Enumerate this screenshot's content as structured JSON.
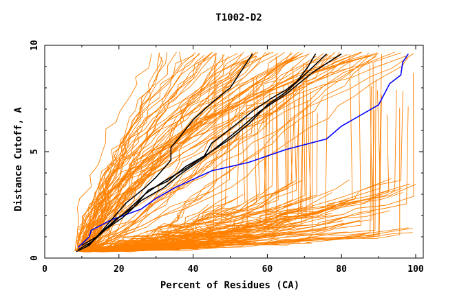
{
  "chart_data": {
    "type": "line",
    "title": "T1002-D2",
    "xlabel": "Percent of Residues (CA)",
    "ylabel": "Distance Cutoff, A",
    "xlim": [
      0,
      100
    ],
    "ylim": [
      0,
      10
    ],
    "x_ticks": [
      "0",
      "20",
      "40",
      "60",
      "80",
      "100"
    ],
    "y_ticks": [
      "0",
      "5",
      "10"
    ],
    "colors": {
      "background": "#ffffff",
      "axes": "#000000",
      "orange": "#ff8000",
      "black": "#000000",
      "blue": "#0000ff"
    },
    "series": [
      {
        "color": "#0000ff",
        "x": [
          9,
          12,
          12.5,
          18,
          26,
          30,
          35,
          40,
          45,
          55,
          65,
          76,
          80,
          90,
          93,
          96,
          96.5,
          98
        ],
        "y": [
          0.5,
          1,
          1.3,
          1.8,
          2.3,
          2.8,
          3.3,
          3.7,
          4.1,
          4.5,
          5.1,
          5.6,
          6.2,
          7.2,
          8.2,
          8.6,
          9.2,
          9.6
        ]
      },
      {
        "color": "#000000",
        "x": [
          8.5,
          12,
          14,
          18,
          22,
          27,
          30,
          34,
          34,
          36,
          40,
          45,
          50,
          56
        ],
        "y": [
          0.3,
          0.6,
          1,
          1.8,
          2.6,
          3.3,
          3.8,
          4.6,
          5.2,
          5.6,
          6.5,
          7.3,
          8,
          9.6
        ]
      },
      {
        "color": "#000000",
        "x": [
          9,
          13,
          18,
          22,
          27,
          32,
          38,
          43,
          45,
          51,
          56,
          61,
          65,
          68,
          71,
          73
        ],
        "y": [
          0.4,
          0.8,
          1.6,
          2.2,
          3,
          3.6,
          4.2,
          4.8,
          5.4,
          6.2,
          6.9,
          7.5,
          7.9,
          8.3,
          9,
          9.6
        ]
      },
      {
        "color": "#000000",
        "x": [
          10,
          14,
          19,
          24,
          28,
          33,
          38,
          44,
          50,
          55,
          60,
          65,
          70,
          76
        ],
        "y": [
          0.6,
          1,
          1.8,
          2.4,
          3.2,
          3.6,
          4.3,
          4.9,
          5.6,
          6.3,
          7.2,
          7.8,
          8.6,
          9.6
        ]
      },
      {
        "color": "#000000",
        "x": [
          11,
          16,
          21,
          26,
          32,
          37,
          42,
          47,
          52,
          58,
          65,
          72,
          80
        ],
        "y": [
          0.5,
          1.3,
          1.9,
          2.7,
          3.3,
          4,
          4.6,
          5.3,
          6,
          6.9,
          7.7,
          8.7,
          9.6
        ]
      }
    ]
  }
}
